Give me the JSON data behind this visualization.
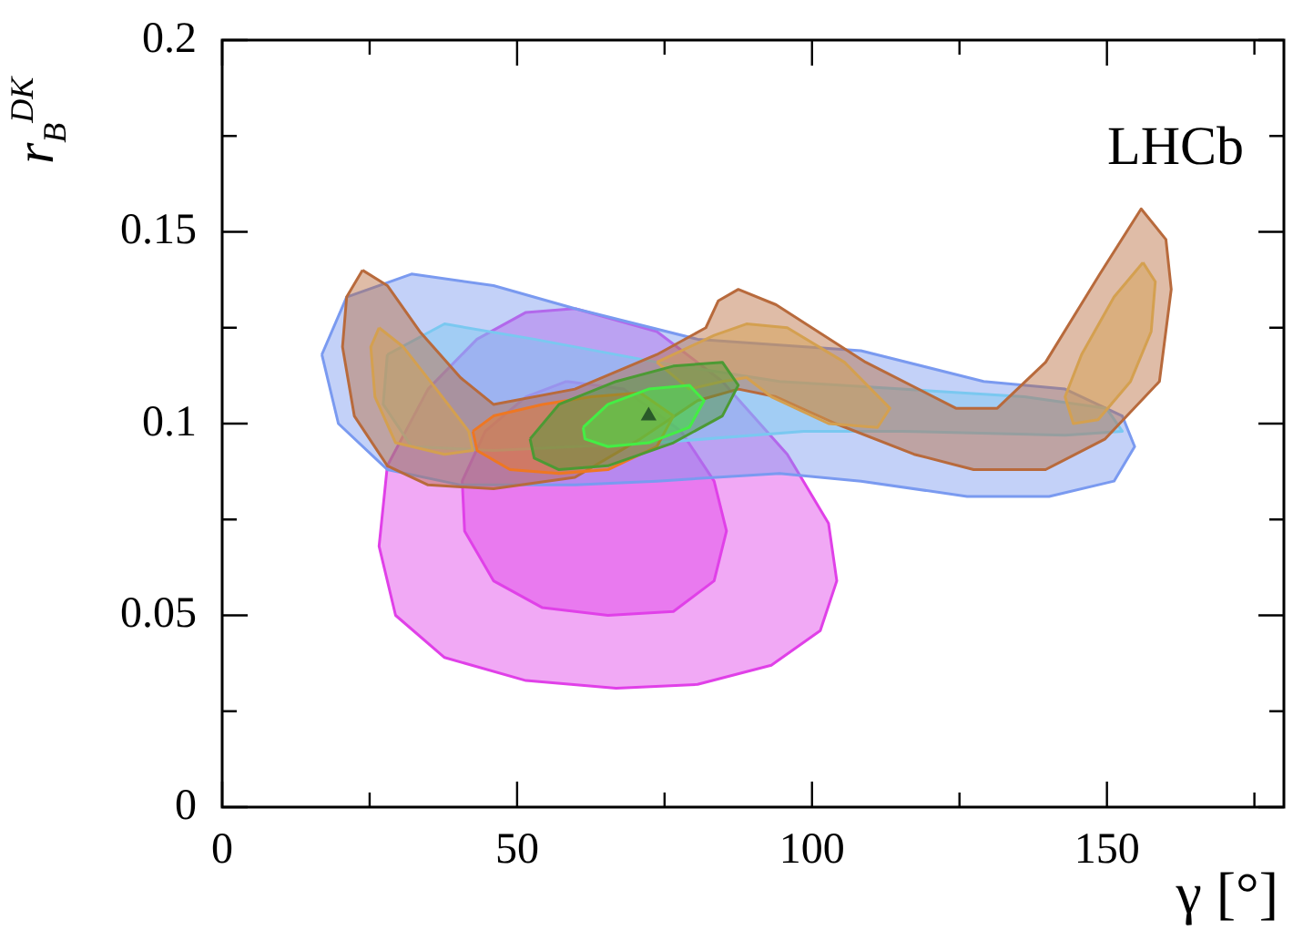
{
  "chart_data": {
    "type": "area",
    "xlabel": "γ [°]",
    "ylabel": "r$_{B}$$^{DK}$",
    "annotations": [
      "LHCb"
    ],
    "legend": false,
    "grid": false,
    "marker": "none",
    "xlim": [
      0,
      180
    ],
    "xticks": [
      0,
      {
        "value": 25,
        "label": null
      },
      50,
      {
        "value": 75,
        "label": null
      },
      100,
      {
        "value": 125,
        "label": null
      },
      150,
      {
        "value": 175,
        "label": null
      }
    ],
    "ylim": [
      0,
      0.2
    ],
    "yticks": [
      0,
      {
        "value": 0.025,
        "label": null
      },
      0.05,
      {
        "value": 0.075,
        "label": null
      },
      0.1,
      {
        "value": 0.125,
        "label": null
      },
      0.15,
      {
        "value": 0.175,
        "label": null
      },
      0.2
    ],
    "series": [
      {
        "color": "#e040e8",
        "x": [
          59.8,
          73.7,
          84.8,
          95.8,
          102.8,
          104.2,
          101.4,
          93.1,
          80.6,
          66.8,
          51.5,
          37.7,
          29.4,
          26.6,
          28.0,
          34.9,
          43.2,
          51.5
        ],
        "values": [
          0.13,
          0.124,
          0.111,
          0.092,
          0.074,
          0.059,
          0.046,
          0.037,
          0.032,
          0.031,
          0.033,
          0.039,
          0.05,
          0.068,
          0.089,
          0.109,
          0.122,
          0.129
        ]
      },
      {
        "color": "#e040e8",
        "x": [
          58.4,
          68.1,
          77.8,
          83.4,
          85.5,
          83.4,
          76.5,
          65.4,
          54.3,
          46.0,
          41.1,
          40.7,
          44.6,
          51.5
        ],
        "values": [
          0.111,
          0.109,
          0.098,
          0.085,
          0.072,
          0.059,
          0.051,
          0.05,
          0.052,
          0.059,
          0.072,
          0.085,
          0.098,
          0.107
        ]
      },
      {
        "color": "#7a9af0",
        "x": [
          16.9,
          21.1,
          32.1,
          46.0,
          59.8,
          80.6,
          108.3,
          129.1,
          142.9,
          152.6,
          154.7,
          151.2,
          140.2,
          126.3,
          108.3,
          94.5,
          73.7,
          59.8,
          40.4,
          28.0,
          19.7
        ],
        "values": [
          0.118,
          0.133,
          0.139,
          0.136,
          0.13,
          0.122,
          0.119,
          0.111,
          0.109,
          0.102,
          0.094,
          0.085,
          0.081,
          0.081,
          0.085,
          0.087,
          0.085,
          0.084,
          0.084,
          0.088,
          0.1
        ]
      },
      {
        "color": "#7ac8f0",
        "x": [
          28.0,
          37.7,
          52.9,
          73.7,
          94.5,
          115.2,
          136.0,
          149.9,
          152.6,
          142.9,
          115.2,
          98.6,
          73.7,
          46.0,
          32.1,
          27.3
        ],
        "values": [
          0.118,
          0.126,
          0.122,
          0.116,
          0.111,
          0.109,
          0.107,
          0.104,
          0.098,
          0.097,
          0.098,
          0.098,
          0.095,
          0.093,
          0.094,
          0.105
        ]
      },
      {
        "color": "#b86a3c",
        "x": [
          23.8,
          28.0,
          33.5,
          40.4,
          46.0,
          59.8,
          73.7,
          82.0,
          84.1,
          87.5,
          93.9,
          109.1,
          124.4,
          131.4,
          139.6,
          148.8,
          155.8,
          160.0,
          160.9,
          158.9,
          149.7,
          139.6,
          127.4,
          117.3,
          104.0,
          93.9,
          87.5,
          80.6,
          70.9,
          59.8,
          46.0,
          34.9,
          28.0,
          22.4,
          20.4,
          21.1
        ],
        "values": [
          0.14,
          0.136,
          0.124,
          0.112,
          0.105,
          0.109,
          0.118,
          0.125,
          0.132,
          0.135,
          0.131,
          0.116,
          0.104,
          0.104,
          0.116,
          0.139,
          0.156,
          0.148,
          0.135,
          0.111,
          0.096,
          0.088,
          0.088,
          0.092,
          0.1,
          0.107,
          0.109,
          0.106,
          0.096,
          0.086,
          0.083,
          0.084,
          0.089,
          0.102,
          0.12,
          0.133
        ]
      },
      {
        "color": "#d4a050",
        "x": [
          26.6,
          30.7,
          36.3,
          41.8,
          42.5,
          37.7,
          29.4,
          25.9,
          25.2
        ],
        "values": [
          0.125,
          0.12,
          0.109,
          0.098,
          0.093,
          0.092,
          0.095,
          0.107,
          0.12
        ]
      },
      {
        "color": "#d4a050",
        "x": [
          73.7,
          83.4,
          88.9,
          95.8,
          105.5,
          113.2,
          111.1,
          102.8,
          93.1,
          88.9,
          84.8,
          79.2
        ],
        "values": [
          0.116,
          0.123,
          0.126,
          0.125,
          0.116,
          0.104,
          0.099,
          0.1,
          0.107,
          0.112,
          0.111,
          0.109
        ]
      },
      {
        "color": "#d4a050",
        "x": [
          156.1,
          158.2,
          157.5,
          154.0,
          148.5,
          144.3,
          142.9,
          145.7,
          151.2
        ],
        "values": [
          0.142,
          0.137,
          0.124,
          0.111,
          0.101,
          0.1,
          0.107,
          0.118,
          0.133
        ]
      },
      {
        "color": "#ee7722",
        "x": [
          42.5,
          46.0,
          54.3,
          62.6,
          70.9,
          76.5,
          73.7,
          65.4,
          57.1,
          48.8,
          43.2
        ],
        "values": [
          0.098,
          0.102,
          0.105,
          0.107,
          0.108,
          0.102,
          0.094,
          0.088,
          0.087,
          0.088,
          0.093
        ]
      },
      {
        "color": "#4c9a34",
        "x": [
          52.2,
          57.1,
          66.8,
          76.5,
          84.8,
          87.5,
          84.8,
          76.5,
          65.4,
          57.1,
          52.9
        ],
        "values": [
          0.096,
          0.105,
          0.111,
          0.115,
          0.116,
          0.11,
          0.102,
          0.095,
          0.089,
          0.088,
          0.091
        ]
      },
      {
        "color": "#44ee44",
        "x": [
          61.2,
          65.4,
          72.3,
          79.2,
          81.7,
          79.2,
          72.3,
          65.4,
          61.5
        ],
        "values": [
          0.099,
          0.105,
          0.109,
          0.11,
          0.106,
          0.099,
          0.095,
          0.094,
          0.096
        ]
      },
      {
        "type": "scatter",
        "marker": "triangle",
        "color": "#2a5a2a",
        "x": [
          72.3
        ],
        "values": [
          0.102
        ]
      }
    ]
  }
}
